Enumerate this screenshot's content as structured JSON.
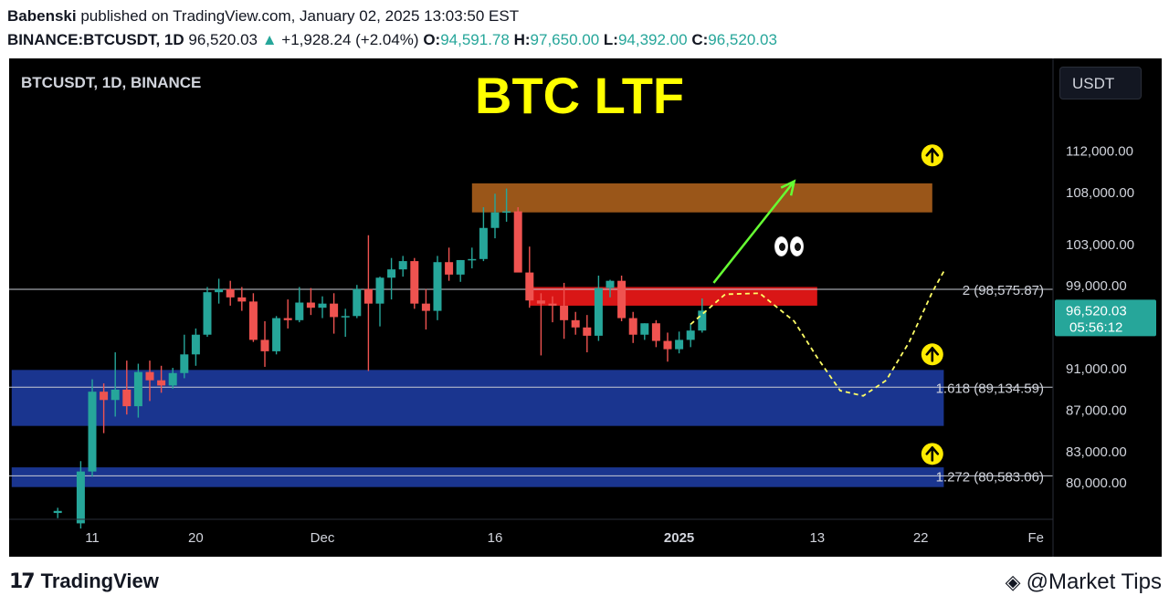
{
  "header": {
    "author": "Babenski",
    "published_text": "published on TradingView.com, January 02, 2025 13:03:50 EST",
    "symbol": "BINANCE:BTCUSDT, 1D",
    "last": "96,520.03",
    "up_arrow": "▲",
    "change": "+1,928.24 (+2.04%)",
    "o_label": "O:",
    "o_value": "94,591.78",
    "h_label": "H:",
    "h_value": "97,650.00",
    "l_label": "L:",
    "l_value": "94,392.00",
    "c_label": "C:",
    "c_value": "96,520.03"
  },
  "chart_header": {
    "legend": "BTCUSDT, 1D, BINANCE",
    "title": "BTC LTF",
    "currency_button": "USDT"
  },
  "footer": {
    "brand_mark": "17",
    "brand_name": "TradingView",
    "watermark_icon": "binance-diamond-icon",
    "watermark": "@Market Tips"
  },
  "colors": {
    "background": "#000000",
    "up": "#26a69a",
    "down": "#ef5350",
    "title": "#ffff00",
    "resistance_zone": "#b5651d",
    "pivot_zone": "#ff1a1a",
    "support_zone": "#1e3ea8",
    "projection_arrow": "#66ff33",
    "projection_path": "#ffff66"
  },
  "chart_data": {
    "type": "candlestick",
    "symbol": "BINANCE:BTCUSDT",
    "interval": "1D",
    "y_axis_ticks": [
      "112,000.00",
      "108,000.00",
      "103,000.00",
      "99,000.00",
      "91,000.00",
      "87,000.00",
      "83,000.00",
      "80,000.00"
    ],
    "y_tick_values": [
      112000,
      108000,
      103000,
      99000,
      91000,
      87000,
      83000,
      80000
    ],
    "x_axis_ticks": [
      {
        "label": "11",
        "day": 0
      },
      {
        "label": "20",
        "day": 9
      },
      {
        "label": "Dec",
        "day": 20
      },
      {
        "label": "16",
        "day": 35
      },
      {
        "label": "2025",
        "day": 51,
        "bold": true
      },
      {
        "label": "13",
        "day": 63
      },
      {
        "label": "22",
        "day": 72
      },
      {
        "label": "Fe",
        "day": 82
      }
    ],
    "last_price_label": {
      "value": "96,520.03",
      "countdown": "05:56:12",
      "price": 96520.03
    },
    "fib_levels": [
      {
        "label": "2 (98,575.87)",
        "price": 98575.87
      },
      {
        "label": "1.618 (89,134.59)",
        "price": 89134.59
      },
      {
        "label": "1.272 (80,583.06)",
        "price": 80583.06
      }
    ],
    "zones": [
      {
        "name": "resistance",
        "from_day": 33,
        "to_day": 73,
        "low": 106000,
        "high": 108800
      },
      {
        "name": "pivot",
        "from_day": 38,
        "to_day": 63,
        "low": 97000,
        "high": 98800
      },
      {
        "name": "support-upper",
        "from_day": -7,
        "to_day": 74,
        "low": 85400,
        "high": 90800
      },
      {
        "name": "support-lower",
        "from_day": -7,
        "to_day": 74,
        "low": 79500,
        "high": 81400
      }
    ],
    "markers": [
      {
        "name": "up-arrow",
        "day": 73,
        "price": 111500
      },
      {
        "name": "up-arrow",
        "day": 73,
        "price": 92300
      },
      {
        "name": "up-arrow",
        "day": 73,
        "price": 82700
      }
    ],
    "projection_arrow": {
      "from": [
        54,
        99200
      ],
      "to": [
        61,
        109000
      ]
    },
    "projection_path": [
      [
        52,
        95200
      ],
      [
        55,
        98100
      ],
      [
        58,
        98200
      ],
      [
        61,
        95500
      ],
      [
        63,
        92000
      ],
      [
        65,
        88800
      ],
      [
        67,
        88300
      ],
      [
        69,
        89800
      ],
      [
        71,
        93500
      ],
      [
        73,
        98300
      ],
      [
        74,
        100300
      ]
    ],
    "candles": [
      {
        "d": -3,
        "o": 77000,
        "h": 77500,
        "l": 76500,
        "c": 77200
      },
      {
        "d": -1,
        "o": 76000,
        "h": 82000,
        "l": 75500,
        "c": 81000
      },
      {
        "d": 0,
        "o": 81000,
        "h": 89900,
        "l": 80500,
        "c": 88700
      },
      {
        "d": 1,
        "o": 88700,
        "h": 89500,
        "l": 84700,
        "c": 87900
      },
      {
        "d": 2,
        "o": 87900,
        "h": 92500,
        "l": 86300,
        "c": 88900
      },
      {
        "d": 3,
        "o": 88900,
        "h": 91700,
        "l": 86500,
        "c": 87300
      },
      {
        "d": 4,
        "o": 87300,
        "h": 91400,
        "l": 86200,
        "c": 90600
      },
      {
        "d": 5,
        "o": 90600,
        "h": 91700,
        "l": 87800,
        "c": 89800
      },
      {
        "d": 6,
        "o": 89800,
        "h": 91200,
        "l": 88600,
        "c": 89300
      },
      {
        "d": 7,
        "o": 89300,
        "h": 91000,
        "l": 89000,
        "c": 90500
      },
      {
        "d": 8,
        "o": 90500,
        "h": 94200,
        "l": 90000,
        "c": 92300
      },
      {
        "d": 9,
        "o": 92300,
        "h": 94800,
        "l": 91200,
        "c": 94200
      },
      {
        "d": 10,
        "o": 94200,
        "h": 98800,
        "l": 94000,
        "c": 98300
      },
      {
        "d": 11,
        "o": 98300,
        "h": 99600,
        "l": 97200,
        "c": 98600
      },
      {
        "d": 12,
        "o": 98600,
        "h": 99400,
        "l": 97000,
        "c": 97800
      },
      {
        "d": 13,
        "o": 97800,
        "h": 98800,
        "l": 96500,
        "c": 97400
      },
      {
        "d": 14,
        "o": 97400,
        "h": 98200,
        "l": 93500,
        "c": 93700
      },
      {
        "d": 15,
        "o": 93700,
        "h": 95500,
        "l": 91100,
        "c": 92600
      },
      {
        "d": 16,
        "o": 92600,
        "h": 96000,
        "l": 92300,
        "c": 95800
      },
      {
        "d": 17,
        "o": 95800,
        "h": 97600,
        "l": 94800,
        "c": 95600
      },
      {
        "d": 18,
        "o": 95600,
        "h": 98800,
        "l": 95400,
        "c": 97300
      },
      {
        "d": 19,
        "o": 97300,
        "h": 98700,
        "l": 96100,
        "c": 96800
      },
      {
        "d": 20,
        "o": 96800,
        "h": 97900,
        "l": 95800,
        "c": 97200
      },
      {
        "d": 21,
        "o": 97200,
        "h": 98200,
        "l": 94300,
        "c": 95900
      },
      {
        "d": 22,
        "o": 95900,
        "h": 96700,
        "l": 94000,
        "c": 96000
      },
      {
        "d": 23,
        "o": 96000,
        "h": 99000,
        "l": 95800,
        "c": 98600
      },
      {
        "d": 24,
        "o": 98600,
        "h": 103800,
        "l": 90700,
        "c": 97200
      },
      {
        "d": 25,
        "o": 97200,
        "h": 99800,
        "l": 95000,
        "c": 99700
      },
      {
        "d": 26,
        "o": 99700,
        "h": 101600,
        "l": 97600,
        "c": 100500
      },
      {
        "d": 27,
        "o": 100500,
        "h": 101800,
        "l": 99800,
        "c": 101300
      },
      {
        "d": 28,
        "o": 101300,
        "h": 101600,
        "l": 96700,
        "c": 97200
      },
      {
        "d": 29,
        "o": 97200,
        "h": 98600,
        "l": 94700,
        "c": 96500
      },
      {
        "d": 30,
        "o": 96500,
        "h": 101800,
        "l": 95600,
        "c": 101200
      },
      {
        "d": 31,
        "o": 101200,
        "h": 102600,
        "l": 99400,
        "c": 100000
      },
      {
        "d": 32,
        "o": 100000,
        "h": 101400,
        "l": 99300,
        "c": 101400
      },
      {
        "d": 33,
        "o": 101400,
        "h": 102600,
        "l": 100600,
        "c": 101500
      },
      {
        "d": 34,
        "o": 101500,
        "h": 106500,
        "l": 101300,
        "c": 104500
      },
      {
        "d": 35,
        "o": 104500,
        "h": 107800,
        "l": 103500,
        "c": 106000
      },
      {
        "d": 36,
        "o": 106000,
        "h": 108300,
        "l": 105100,
        "c": 106100
      },
      {
        "d": 37,
        "o": 106100,
        "h": 106500,
        "l": 100300,
        "c": 100200
      },
      {
        "d": 38,
        "o": 100200,
        "h": 102700,
        "l": 96800,
        "c": 97500
      },
      {
        "d": 39,
        "o": 97500,
        "h": 98200,
        "l": 92200,
        "c": 97200
      },
      {
        "d": 40,
        "o": 97200,
        "h": 97900,
        "l": 95400,
        "c": 97000
      },
      {
        "d": 41,
        "o": 97000,
        "h": 99200,
        "l": 93800,
        "c": 95600
      },
      {
        "d": 42,
        "o": 95600,
        "h": 96400,
        "l": 94200,
        "c": 94900
      },
      {
        "d": 43,
        "o": 94900,
        "h": 96100,
        "l": 92500,
        "c": 94100
      },
      {
        "d": 44,
        "o": 94100,
        "h": 99900,
        "l": 93600,
        "c": 98700
      },
      {
        "d": 45,
        "o": 98700,
        "h": 99500,
        "l": 97800,
        "c": 99400
      },
      {
        "d": 46,
        "o": 99400,
        "h": 99900,
        "l": 95500,
        "c": 95800
      },
      {
        "d": 47,
        "o": 95800,
        "h": 96400,
        "l": 93400,
        "c": 94200
      },
      {
        "d": 48,
        "o": 94200,
        "h": 95300,
        "l": 93700,
        "c": 95300
      },
      {
        "d": 49,
        "o": 95300,
        "h": 95600,
        "l": 93000,
        "c": 93600
      },
      {
        "d": 50,
        "o": 93600,
        "h": 94400,
        "l": 91600,
        "c": 92800
      },
      {
        "d": 51,
        "o": 92800,
        "h": 94500,
        "l": 92400,
        "c": 93700
      },
      {
        "d": 52,
        "o": 93700,
        "h": 95300,
        "l": 93000,
        "c": 94600
      },
      {
        "d": 53,
        "o": 94600,
        "h": 97700,
        "l": 94400,
        "c": 96520
      }
    ]
  }
}
